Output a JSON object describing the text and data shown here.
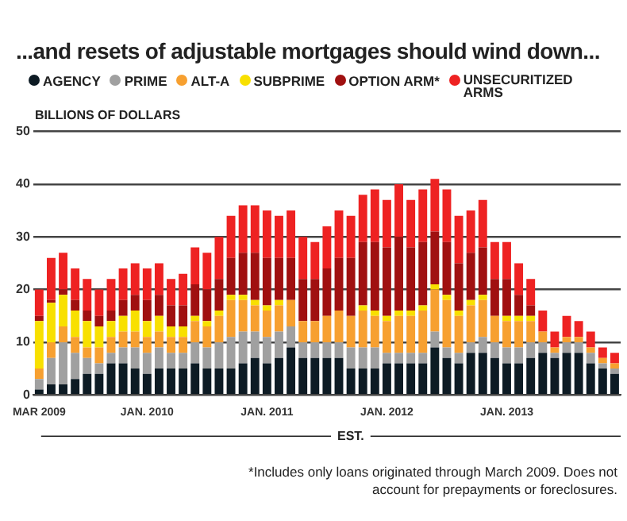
{
  "chart_data": {
    "type": "bar",
    "stacked": true,
    "title": "...and resets of adjustable mortgages should wind down...",
    "ylabel": "BILLIONS OF DOLLARS",
    "categories": [
      "MAR 2009",
      null,
      null,
      null,
      null,
      null,
      null,
      null,
      null,
      "JAN. 2010",
      null,
      null,
      null,
      null,
      null,
      null,
      null,
      null,
      null,
      "JAN. 2011",
      null,
      null,
      null,
      null,
      null,
      null,
      null,
      null,
      null,
      "JAN. 2012",
      null,
      null,
      null,
      null,
      null,
      null,
      null,
      null,
      null,
      "JAN. 2013",
      null,
      null,
      null,
      null,
      null,
      null,
      null,
      null,
      null
    ],
    "series": [
      {
        "name": "AGENCY",
        "color": "#0d1b24",
        "values": [
          1,
          2,
          2,
          3,
          4,
          4,
          6,
          6,
          5,
          4,
          5,
          5,
          5,
          6,
          5,
          5,
          5,
          6,
          7,
          6,
          7,
          9,
          7,
          7,
          7,
          7,
          5,
          5,
          5,
          6,
          6,
          6,
          6,
          9,
          7,
          6,
          8,
          8,
          7,
          6,
          6,
          7,
          8,
          7,
          8,
          8,
          6,
          5,
          4
        ]
      },
      {
        "name": "PRIME",
        "color": "#a0a0a0",
        "values": [
          2,
          5,
          8,
          5,
          3,
          2,
          2,
          3,
          4,
          4,
          4,
          3,
          3,
          4,
          4,
          5,
          6,
          6,
          5,
          5,
          5,
          4,
          3,
          3,
          3,
          3,
          4,
          4,
          4,
          2,
          2,
          2,
          2,
          3,
          2,
          2,
          2,
          3,
          3,
          3,
          3,
          3,
          2,
          1,
          2,
          2,
          2,
          1,
          1
        ]
      },
      {
        "name": "ALT-A",
        "color": "#f7a030",
        "values": [
          2,
          3,
          3,
          3,
          2,
          3,
          3,
          3,
          3,
          3,
          3,
          3,
          3,
          4,
          4,
          5,
          7,
          6,
          5,
          5,
          5,
          5,
          4,
          4,
          5,
          6,
          6,
          7,
          6,
          6,
          7,
          7,
          8,
          8,
          9,
          7,
          7,
          7,
          5,
          5,
          5,
          4,
          2,
          1,
          1,
          1,
          1,
          1,
          1
        ]
      },
      {
        "name": "SUBPRIME",
        "color": "#f8e000",
        "values": [
          9,
          7.5,
          6,
          5,
          5,
          4,
          3,
          3,
          4,
          3,
          3,
          2,
          2,
          1,
          1,
          1,
          1,
          1,
          1,
          1,
          1,
          0,
          0,
          0,
          0,
          0,
          0,
          1,
          1,
          1,
          1,
          1,
          1,
          1,
          1,
          1,
          1,
          1,
          0,
          1,
          1,
          1,
          0,
          0,
          0,
          0,
          0,
          0,
          0
        ]
      },
      {
        "name": "OPTION ARM*",
        "color": "#a01010",
        "values": [
          1,
          0.5,
          1,
          2,
          2,
          2,
          2,
          3,
          3,
          4,
          4,
          4,
          4,
          6,
          6,
          6,
          7,
          8,
          9,
          9,
          8,
          8,
          8,
          8,
          9,
          10,
          11,
          12,
          13,
          13,
          14,
          12,
          12,
          10,
          10,
          9,
          9,
          9,
          7,
          7,
          4,
          2,
          0,
          0,
          0,
          0,
          0,
          0,
          0
        ]
      },
      {
        "name": "UNSECURITIZED ARMS",
        "color": "#ee2222",
        "values": [
          5,
          8,
          7,
          6,
          6,
          5,
          6,
          6,
          6,
          6,
          6,
          5,
          6,
          7,
          7,
          8,
          8,
          9,
          9,
          9,
          8,
          9,
          8,
          7,
          8,
          9,
          8,
          9,
          10,
          9,
          10,
          9,
          10,
          10,
          10,
          9,
          8,
          9,
          7,
          7,
          6,
          5,
          4,
          3,
          4,
          3,
          3,
          2,
          2
        ]
      }
    ],
    "ylim": [
      0,
      50
    ],
    "yticks": [
      0,
      10,
      20,
      30,
      40,
      50
    ],
    "grid": "y",
    "legend": "top left",
    "annotations": [
      "EST.",
      "*Includes only loans originated through March 2009. Does not account for prepayments or foreclosures."
    ]
  }
}
